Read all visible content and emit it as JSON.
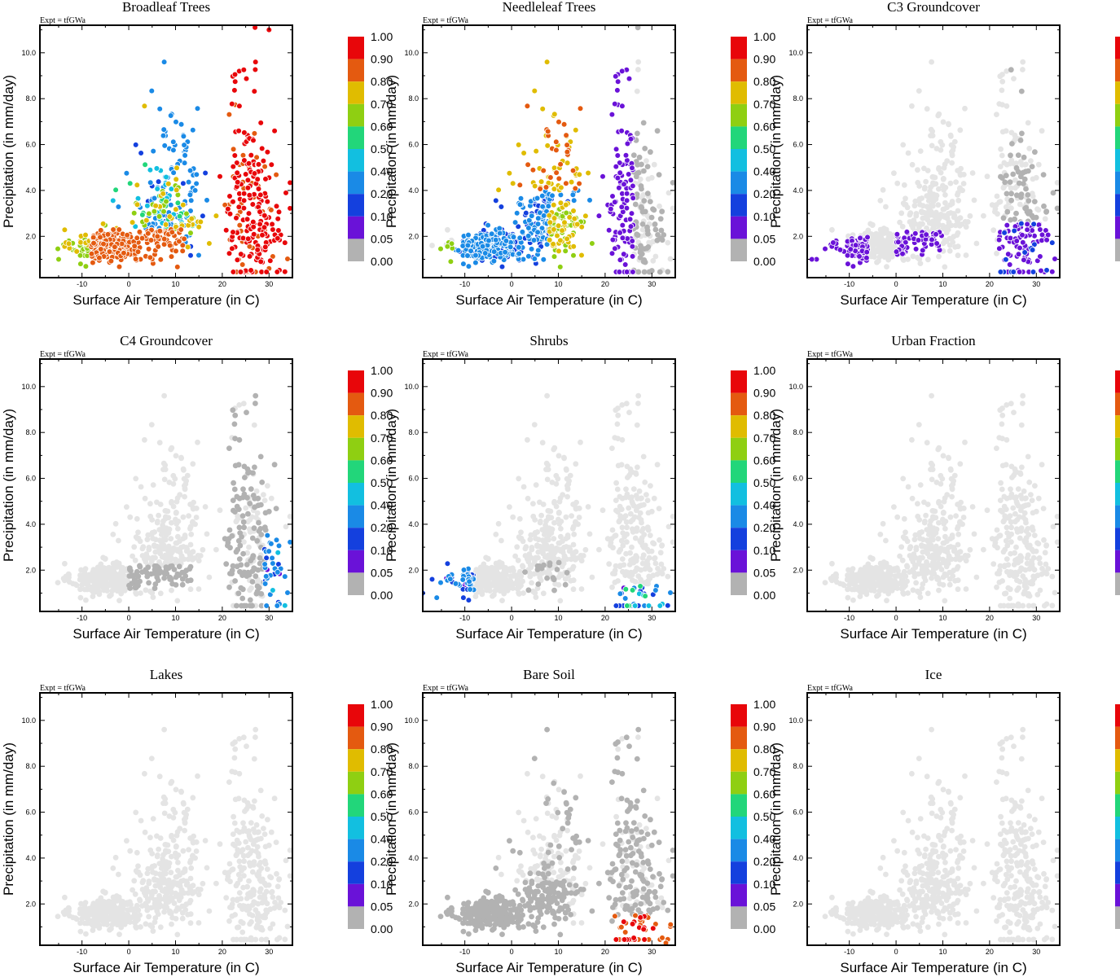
{
  "expt_label": "Expt = tfGWa",
  "xlabel": "Surface Air Temperature (in C)",
  "ylabel": "Precipitation (in mm/day)",
  "xticks": [
    {
      "value": -10,
      "label": "-10"
    },
    {
      "value": 0,
      "label": "0"
    },
    {
      "value": 10,
      "label": "10"
    },
    {
      "value": 20,
      "label": "20"
    },
    {
      "value": 30,
      "label": "30"
    }
  ],
  "yticks": [
    {
      "value": 2,
      "label": "2.0"
    },
    {
      "value": 4,
      "label": "4.0"
    },
    {
      "value": 6,
      "label": "6.0"
    },
    {
      "value": 8,
      "label": "8.0"
    },
    {
      "value": 10,
      "label": "10.0"
    }
  ],
  "colorbar": {
    "labels": [
      "1.00",
      "0.90",
      "0.80",
      "0.70",
      "0.60",
      "0.50",
      "0.40",
      "0.20",
      "0.10",
      "0.05",
      "0.00"
    ],
    "colors": [
      "#e8060a",
      "#e45a10",
      "#e0bc00",
      "#8fcf12",
      "#22d67a",
      "#12bfe0",
      "#1a8ae6",
      "#1440de",
      "#6a12d8",
      "#b2b2b2"
    ]
  },
  "light_color": "#e4e4e4",
  "chart_data": [
    {
      "type": "scatter",
      "title": "Broadleaf Trees",
      "dataset": "broadleaf",
      "xlim": [
        -19,
        35
      ],
      "ylim": [
        0.2,
        11.2
      ]
    },
    {
      "type": "scatter",
      "title": "Needleleaf Trees",
      "dataset": "needleleaf",
      "xlim": [
        -19,
        35
      ],
      "ylim": [
        0.2,
        11.2
      ]
    },
    {
      "type": "scatter",
      "title": "C3 Groundcover",
      "dataset": "c3",
      "xlim": [
        -19,
        35
      ],
      "ylim": [
        0.2,
        11.2
      ]
    },
    {
      "type": "scatter",
      "title": "C4 Groundcover",
      "dataset": "c4",
      "xlim": [
        -19,
        35
      ],
      "ylim": [
        0.2,
        11.2
      ]
    },
    {
      "type": "scatter",
      "title": "Shrubs",
      "dataset": "shrubs",
      "xlim": [
        -19,
        35
      ],
      "ylim": [
        0.2,
        11.2
      ]
    },
    {
      "type": "scatter",
      "title": "Urban Fraction",
      "dataset": "urban",
      "xlim": [
        -19,
        35
      ],
      "ylim": [
        0.2,
        11.2
      ]
    },
    {
      "type": "scatter",
      "title": "Lakes",
      "dataset": "lakes",
      "xlim": [
        -19,
        35
      ],
      "ylim": [
        0.2,
        11.2
      ]
    },
    {
      "type": "scatter",
      "title": "Bare Soil",
      "dataset": "baresoil",
      "xlim": [
        -19,
        35
      ],
      "ylim": [
        0.2,
        11.2
      ]
    },
    {
      "type": "scatter",
      "title": "Ice",
      "dataset": "ice",
      "xlim": [
        -19,
        35
      ],
      "ylim": [
        0.2,
        11.2
      ]
    }
  ],
  "point_cloud": {
    "seed": 20240611,
    "count": 780,
    "clusters": [
      {
        "cx": -5,
        "cy": 1.6,
        "sx": 6,
        "sy": 0.35,
        "n": 260
      },
      {
        "cx": 8,
        "cy": 2.6,
        "sx": 7,
        "sy": 0.9,
        "n": 200
      },
      {
        "cx": 10,
        "cy": 4.8,
        "sx": 6,
        "sy": 1.6,
        "n": 90
      },
      {
        "cx": 27,
        "cy": 2.8,
        "sx": 5,
        "sy": 1.5,
        "n": 190
      },
      {
        "cx": 25,
        "cy": 6.6,
        "sx": 4,
        "sy": 1.5,
        "n": 40
      }
    ]
  }
}
